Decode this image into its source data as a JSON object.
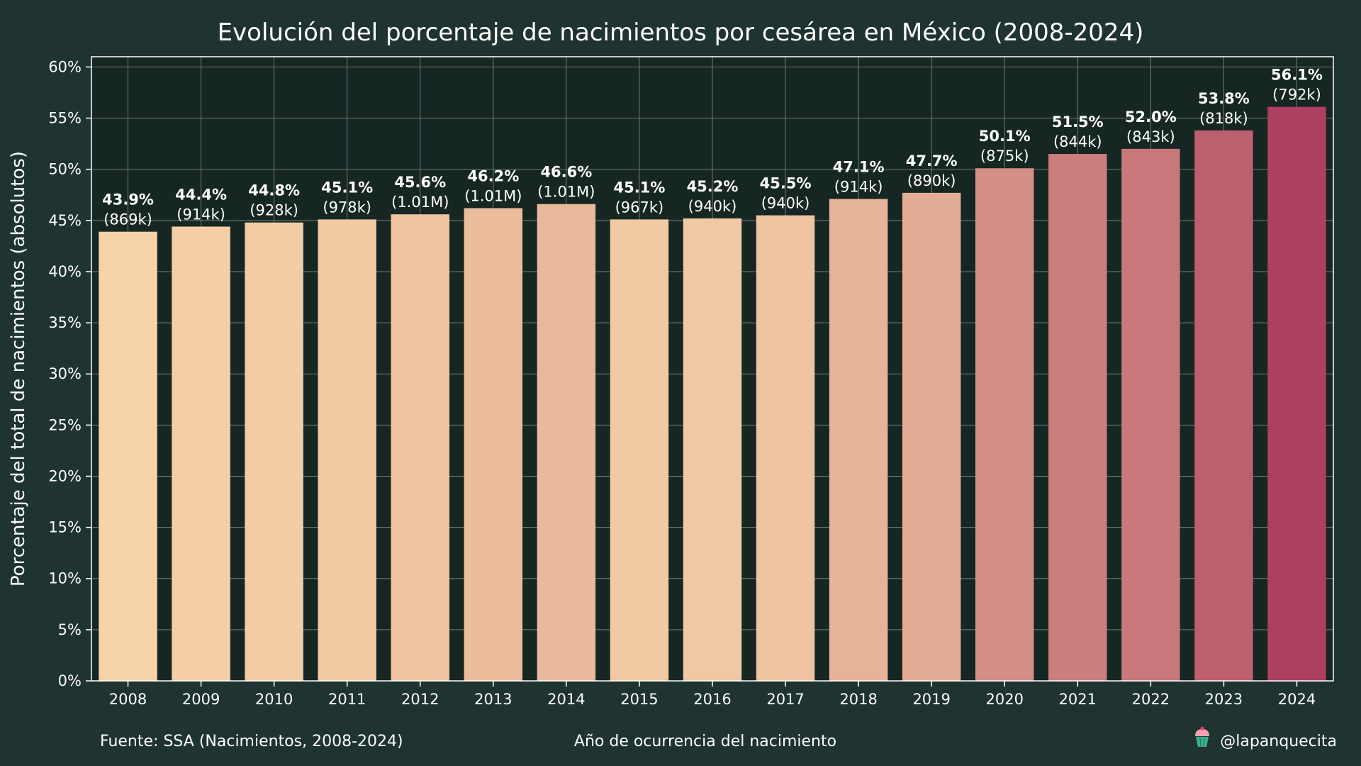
{
  "chart_data": {
    "type": "bar",
    "title": "Evolución del porcentaje de nacimientos por cesárea en México (2008-2024)",
    "xlabel": "Año de ocurrencia del nacimiento",
    "ylabel": "Porcentaje del total de nacimientos (absolutos)",
    "categories": [
      "2008",
      "2009",
      "2010",
      "2011",
      "2012",
      "2013",
      "2014",
      "2015",
      "2016",
      "2017",
      "2018",
      "2019",
      "2020",
      "2021",
      "2022",
      "2023",
      "2024"
    ],
    "values": [
      43.9,
      44.4,
      44.8,
      45.1,
      45.6,
      46.2,
      46.6,
      45.1,
      45.2,
      45.5,
      47.1,
      47.7,
      50.1,
      51.5,
      52.0,
      53.8,
      56.1
    ],
    "value_labels": [
      "43.9%",
      "44.4%",
      "44.8%",
      "45.1%",
      "45.6%",
      "46.2%",
      "46.6%",
      "45.1%",
      "45.2%",
      "45.5%",
      "47.1%",
      "47.7%",
      "50.1%",
      "51.5%",
      "52.0%",
      "53.8%",
      "56.1%"
    ],
    "absolute_labels": [
      "(869k)",
      "(914k)",
      "(928k)",
      "(978k)",
      "(1.01M)",
      "(1.01M)",
      "(1.01M)",
      "(967k)",
      "(940k)",
      "(940k)",
      "(914k)",
      "(890k)",
      "(875k)",
      "(844k)",
      "(843k)",
      "(818k)",
      "(792k)"
    ],
    "ylim": [
      0,
      61
    ],
    "yticks": [
      0,
      5,
      10,
      15,
      20,
      25,
      30,
      35,
      40,
      45,
      50,
      55,
      60
    ],
    "ytick_labels": [
      "0%",
      "5%",
      "10%",
      "15%",
      "20%",
      "25%",
      "30%",
      "35%",
      "40%",
      "45%",
      "50%",
      "55%",
      "60%"
    ],
    "grid": true,
    "colors": {
      "background": "#1f3330",
      "plot_background": "#162623",
      "grid": "#6f7b79",
      "axis": "#ffffff",
      "bar_low": "#f6d3a8",
      "bar_high": "#ad3f60"
    }
  },
  "footer": {
    "source": "Fuente: SSA (Nacimientos, 2008-2024)",
    "credit": "@lapanquecita",
    "credit_icon": "cupcake-icon"
  }
}
